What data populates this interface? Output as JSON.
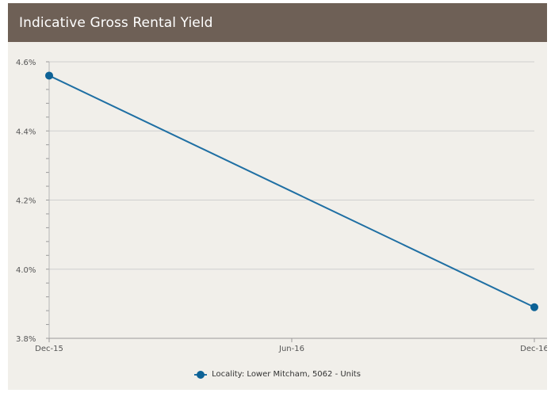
{
  "header": {
    "title": "Indicative Gross Rental Yield"
  },
  "colors": {
    "header_bg": "#6e6056",
    "panel_bg": "#f1efea",
    "series": "#1f6fa3",
    "marker": "#0d6296",
    "grid": "#cfcfcf"
  },
  "chart_data": {
    "type": "line",
    "title": "",
    "xlabel": "",
    "ylabel": "",
    "ylim": [
      3.8,
      4.6
    ],
    "y_ticks": [
      "3.8%",
      "4.0%",
      "4.2%",
      "4.4%",
      "4.6%"
    ],
    "y_tick_values": [
      3.8,
      4.0,
      4.2,
      4.4,
      4.6
    ],
    "x_ticks": [
      "Dec-15",
      "Jun-16",
      "Dec-16"
    ],
    "x": [
      "Dec-15",
      "Dec-16"
    ],
    "series": [
      {
        "name": "Locality: Lower Mitcham, 5062 - Units",
        "values": [
          4.56,
          3.89
        ]
      }
    ],
    "grid": true,
    "legend": "bottom-center"
  }
}
